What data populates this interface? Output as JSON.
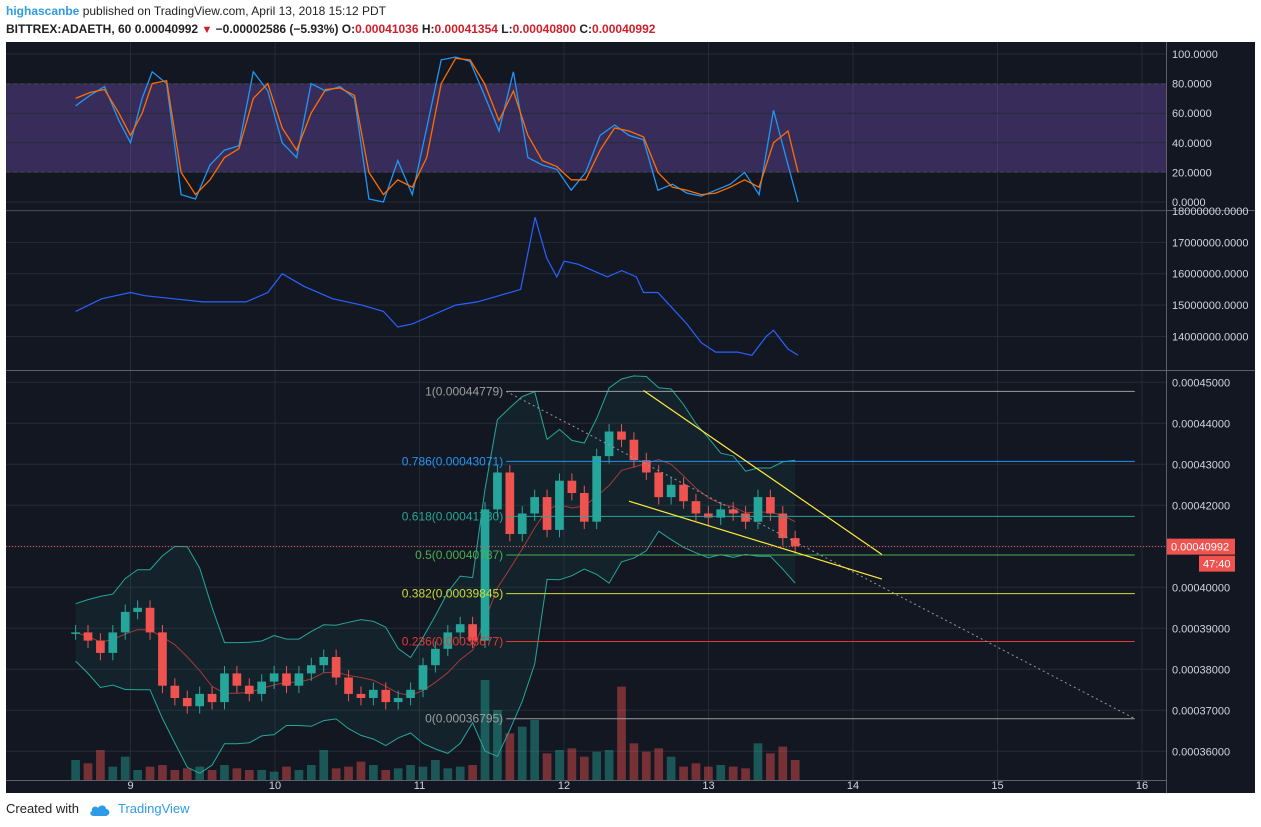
{
  "header": {
    "author": "highascanbe",
    "published": "published on TradingView.com, April 13, 2018 15:12 PDT",
    "symbol": "BITTREX:ADAETH, 60",
    "last": "0.00040992",
    "change": "−0.00002586 (−5.93%)",
    "o_label": "O:",
    "o": "0.00041036",
    "h_label": "H:",
    "h": "0.00041354",
    "l_label": "L:",
    "l": "0.00040800",
    "c_label": "C:",
    "c": "0.00040992"
  },
  "footer": {
    "created_with": "Created with",
    "brand": "TradingView"
  },
  "colors": {
    "background": "#131722",
    "up": "#26a69a",
    "down": "#ef5350",
    "stoch_k": "#2196f3",
    "stoch_d": "#ff6d00",
    "stoch_band": "#7e57c2",
    "obv": "#2962ff",
    "trendline": "#ffeb3b",
    "price_tag": "#ef5350"
  },
  "chart_data": [
    {
      "type": "line",
      "name": "stochastic",
      "ylim": [
        0,
        100
      ],
      "bands": [
        20,
        80
      ],
      "y_ticks": [
        "100.0000",
        "80.0000",
        "60.0000",
        "40.0000",
        "20.0000",
        "0.0000"
      ],
      "x": [
        8.62,
        8.72,
        8.82,
        8.92,
        9.0,
        9.08,
        9.15,
        9.25,
        9.35,
        9.45,
        9.55,
        9.65,
        9.75,
        9.85,
        9.95,
        10.05,
        10.15,
        10.25,
        10.35,
        10.45,
        10.55,
        10.65,
        10.75,
        10.85,
        10.95,
        11.05,
        11.15,
        11.25,
        11.35,
        11.45,
        11.55,
        11.65,
        11.75,
        11.85,
        11.95,
        12.05,
        12.15,
        12.25,
        12.35,
        12.45,
        12.55,
        12.65,
        12.75,
        12.85,
        12.95,
        13.05,
        13.15,
        13.25,
        13.35,
        13.45,
        13.55,
        13.62
      ],
      "series": [
        {
          "values": [
            65,
            72,
            78,
            55,
            40,
            70,
            88,
            80,
            5,
            2,
            25,
            35,
            38,
            88,
            75,
            40,
            30,
            80,
            75,
            78,
            70,
            2,
            0,
            28,
            5,
            50,
            96,
            98,
            95,
            72,
            48,
            88,
            30,
            25,
            22,
            8,
            20,
            45,
            52,
            45,
            42,
            8,
            12,
            6,
            4,
            8,
            12,
            20,
            5,
            62,
            25,
            0
          ]
        },
        {
          "values": [
            70,
            74,
            76,
            60,
            45,
            60,
            80,
            82,
            20,
            5,
            15,
            30,
            36,
            70,
            80,
            50,
            35,
            60,
            76,
            77,
            72,
            20,
            5,
            15,
            10,
            30,
            80,
            97,
            96,
            80,
            55,
            75,
            45,
            28,
            24,
            15,
            15,
            35,
            50,
            48,
            44,
            20,
            10,
            8,
            5,
            6,
            10,
            15,
            10,
            40,
            48,
            20
          ]
        }
      ]
    },
    {
      "type": "line",
      "name": "obv",
      "ylim": [
        13000000,
        18000000
      ],
      "y_ticks": [
        "18000000.0000",
        "17000000.0000",
        "16000000.0000",
        "15000000.0000",
        "14000000.0000"
      ],
      "x": [
        8.62,
        8.8,
        9.0,
        9.1,
        9.3,
        9.5,
        9.8,
        9.95,
        10.05,
        10.2,
        10.4,
        10.6,
        10.75,
        10.85,
        10.95,
        11.1,
        11.25,
        11.4,
        11.55,
        11.7,
        11.8,
        11.88,
        11.95,
        12.0,
        12.1,
        12.2,
        12.3,
        12.4,
        12.5,
        12.55,
        12.65,
        12.75,
        12.85,
        12.95,
        13.05,
        13.2,
        13.3,
        13.4,
        13.45,
        13.55,
        13.62
      ],
      "series": [
        {
          "values": [
            14800000,
            15200000,
            15400000,
            15300000,
            15200000,
            15100000,
            15100000,
            15400000,
            16000000,
            15600000,
            15200000,
            15000000,
            14800000,
            14300000,
            14400000,
            14700000,
            15000000,
            15100000,
            15300000,
            15500000,
            17800000,
            16500000,
            15900000,
            16400000,
            16300000,
            16100000,
            15900000,
            16100000,
            15900000,
            15400000,
            15400000,
            14900000,
            14400000,
            13800000,
            13500000,
            13500000,
            13400000,
            14000000,
            14200000,
            13600000,
            13400000
          ]
        }
      ]
    },
    {
      "type": "candlestick",
      "name": "price",
      "ylim": [
        0.000353,
        0.000453
      ],
      "y_ticks": [
        "0.00045000",
        "0.00044000",
        "0.00043000",
        "0.00042000",
        "0.00041000",
        "0.00040000",
        "0.00039000",
        "0.00038000",
        "0.00037000",
        "0.00036000"
      ],
      "x_ticks": [
        "9",
        "10",
        "11",
        "12",
        "13",
        "14",
        "15",
        "16"
      ],
      "last_price": "0.00040992",
      "countdown": "47:40",
      "fib_levels": [
        {
          "label": "1(0.00044779)",
          "value": 0.00044779,
          "color": "#9e9e9e"
        },
        {
          "label": "0.786(0.00043071)",
          "value": 0.00043071,
          "color": "#2196f3"
        },
        {
          "label": "0.618(0.00041730)",
          "value": 0.0004173,
          "color": "#26a69a"
        },
        {
          "label": "0.5(0.00040787)",
          "value": 0.00040787,
          "color": "#4caf50"
        },
        {
          "label": "0.382(0.00039845)",
          "value": 0.00039845,
          "color": "#cddc39"
        },
        {
          "label": "0.236(0.00038677)",
          "value": 0.00038677,
          "color": "#e53935"
        },
        {
          "label": "0(0.00036795)",
          "value": 0.00036795,
          "color": "#9e9e9e"
        }
      ],
      "close": [
        0.000389,
        0.000387,
        0.000384,
        0.000389,
        0.000394,
        0.000395,
        0.000389,
        0.000376,
        0.000373,
        0.000371,
        0.000374,
        0.000372,
        0.000379,
        0.000376,
        0.000374,
        0.000377,
        0.000379,
        0.000376,
        0.000379,
        0.000381,
        0.000383,
        0.000378,
        0.000374,
        0.000373,
        0.000375,
        0.000372,
        0.000373,
        0.000375,
        0.000381,
        0.000385,
        0.000389,
        0.000391,
        0.000387,
        0.000419,
        0.000428,
        0.000413,
        0.000418,
        0.000422,
        0.000414,
        0.000426,
        0.000423,
        0.000416,
        0.000432,
        0.000438,
        0.000436,
        0.000431,
        0.000428,
        0.000422,
        0.000425,
        0.000421,
        0.000418,
        0.000417,
        0.000419,
        0.000418,
        0.000416,
        0.000422,
        0.000418,
        0.000412,
        0.00041
      ],
      "volume": [
        60,
        50,
        90,
        40,
        70,
        30,
        40,
        45,
        30,
        35,
        40,
        30,
        45,
        35,
        30,
        30,
        25,
        40,
        30,
        45,
        90,
        35,
        40,
        55,
        45,
        30,
        35,
        45,
        40,
        60,
        35,
        40,
        45,
        300,
        210,
        140,
        160,
        180,
        80,
        90,
        95,
        70,
        85,
        90,
        280,
        110,
        85,
        95,
        70,
        40,
        50,
        40,
        45,
        40,
        35,
        110,
        80,
        100,
        60
      ]
    }
  ]
}
